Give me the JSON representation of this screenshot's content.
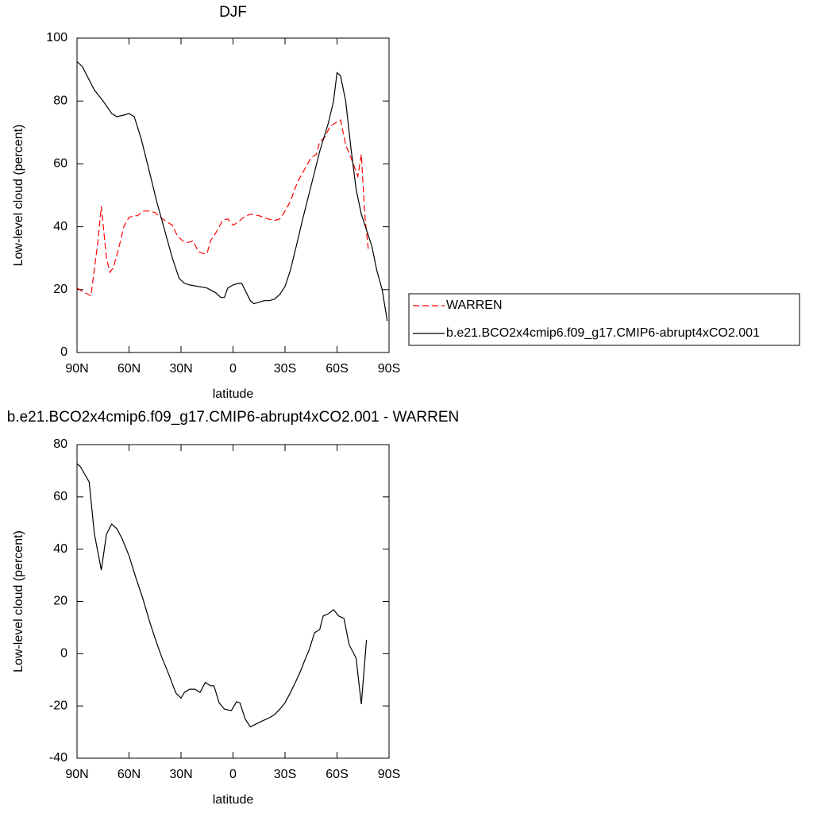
{
  "chart_data": [
    {
      "type": "line",
      "title": "DJF",
      "x_label": "latitude",
      "y_label": "Low-level cloud (percent)",
      "xlim": [
        90,
        -90
      ],
      "xticks": [
        {
          "value": 90,
          "label": "90N"
        },
        {
          "value": 60,
          "label": "60N"
        },
        {
          "value": 30,
          "label": "30N"
        },
        0,
        {
          "value": -30,
          "label": "30S"
        },
        {
          "value": -60,
          "label": "60S"
        },
        {
          "value": -90,
          "label": "90S"
        }
      ],
      "ylim": [
        0,
        100
      ],
      "yticks": [
        0,
        20,
        40,
        60,
        80,
        100
      ],
      "legend": "right",
      "series": [
        {
          "name": "WARREN",
          "color": "#ff0000",
          "dashed": true,
          "x": [
            90,
            87,
            82,
            78,
            76,
            73,
            71,
            69,
            66,
            63,
            60,
            57,
            55,
            52,
            48,
            45,
            42,
            38,
            35,
            32,
            29,
            26,
            23,
            20,
            17,
            15,
            13,
            10,
            6,
            3,
            0,
            -3,
            -6,
            -10,
            -15,
            -20,
            -24,
            -27,
            -30,
            -33,
            -37,
            -40,
            -45,
            -48,
            -50,
            -53,
            -56,
            -59,
            -62,
            -65,
            -68,
            -72,
            -74,
            -76,
            -78
          ],
          "values": [
            20.5,
            19.5,
            18,
            35,
            46.5,
            30,
            25.5,
            27,
            33,
            40,
            43,
            43.5,
            43.5,
            45,
            45,
            44.5,
            43,
            41.5,
            40.5,
            37,
            35.5,
            35,
            35.5,
            32,
            31.5,
            31.5,
            35.5,
            38,
            42,
            42.5,
            40.5,
            41.5,
            43,
            44,
            43.5,
            42.5,
            42,
            42.5,
            45,
            48,
            54,
            57,
            62,
            63,
            67,
            68.5,
            72,
            73,
            74,
            66,
            62,
            56,
            63,
            44,
            33
          ]
        },
        {
          "name": "b.e21.BCO2x4cmip6.f09_g17.CMIP6-abrupt4xCO2.001",
          "color": "#000000",
          "dashed": false,
          "x": [
            90,
            87,
            80,
            75,
            70,
            67,
            63,
            60,
            57,
            53,
            48,
            44,
            40,
            35,
            31,
            28,
            25,
            20,
            15,
            10,
            7,
            5,
            3,
            0,
            -3,
            -5,
            -10,
            -12,
            -15,
            -18,
            -21,
            -24,
            -27,
            -30,
            -33,
            -37,
            -40,
            -45,
            -50,
            -55,
            -58,
            -60,
            -62,
            -65,
            -68,
            -71,
            -74,
            -77,
            -80,
            -83,
            -86,
            -89
          ],
          "values": [
            92.5,
            91,
            83.5,
            80,
            76,
            75,
            75.5,
            76,
            75,
            68,
            57,
            48,
            40,
            30,
            23.5,
            22,
            21.5,
            21,
            20.5,
            19,
            17.5,
            17.5,
            20.5,
            21.5,
            22,
            22,
            16.5,
            15.5,
            16,
            16.5,
            16.5,
            17,
            18.5,
            21,
            26,
            35,
            42,
            53,
            64,
            73,
            80,
            89,
            88,
            80,
            65,
            52,
            44,
            39,
            34,
            26,
            20,
            10
          ]
        }
      ]
    },
    {
      "type": "line",
      "title": "b.e21.BCO2x4cmip6.f09_g17.CMIP6-abrupt4xCO2.001 - WARREN",
      "x_label": "latitude",
      "y_label": "Low-level cloud (percent)",
      "xlim": [
        90,
        -90
      ],
      "xticks": [
        {
          "value": 90,
          "label": "90N"
        },
        {
          "value": 60,
          "label": "60N"
        },
        {
          "value": 30,
          "label": "30N"
        },
        0,
        {
          "value": -30,
          "label": "30S"
        },
        {
          "value": -60,
          "label": "60S"
        },
        {
          "value": -90,
          "label": "90S"
        }
      ],
      "ylim": [
        -40,
        80
      ],
      "yticks": [
        -40,
        -20,
        0,
        20,
        40,
        60,
        80
      ],
      "series": [
        {
          "color": "#000000",
          "dashed": false,
          "x": [
            90,
            88,
            83,
            80,
            76,
            73,
            70,
            67,
            64,
            60,
            56,
            52,
            48,
            44,
            41,
            37,
            33,
            30,
            28,
            25,
            22,
            19,
            16,
            13,
            11,
            8,
            5,
            1,
            -2,
            -4,
            -7,
            -10,
            -13,
            -17,
            -21,
            -24,
            -27,
            -30,
            -33,
            -36,
            -39,
            -42,
            -44,
            -47,
            -50,
            -52,
            -55,
            -58,
            -61,
            -64,
            -67,
            -71,
            -74,
            -77
          ],
          "values": [
            72.7,
            71.5,
            65.7,
            46,
            32,
            45.7,
            49.6,
            47.8,
            44,
            37.5,
            29,
            21,
            12,
            4,
            -1.5,
            -8,
            -15,
            -17,
            -14.8,
            -13.6,
            -13.6,
            -14.8,
            -11,
            -12.3,
            -12.3,
            -18.8,
            -21.2,
            -21.8,
            -18.4,
            -18.8,
            -25,
            -28,
            -27,
            -25.7,
            -24.5,
            -23.3,
            -21.2,
            -18.8,
            -15,
            -11,
            -6.6,
            -1.5,
            1.6,
            8,
            9.2,
            14.4,
            15.3,
            16.8,
            14.4,
            13.5,
            3.4,
            -1.7,
            -19.3,
            5.3
          ]
        }
      ]
    }
  ]
}
